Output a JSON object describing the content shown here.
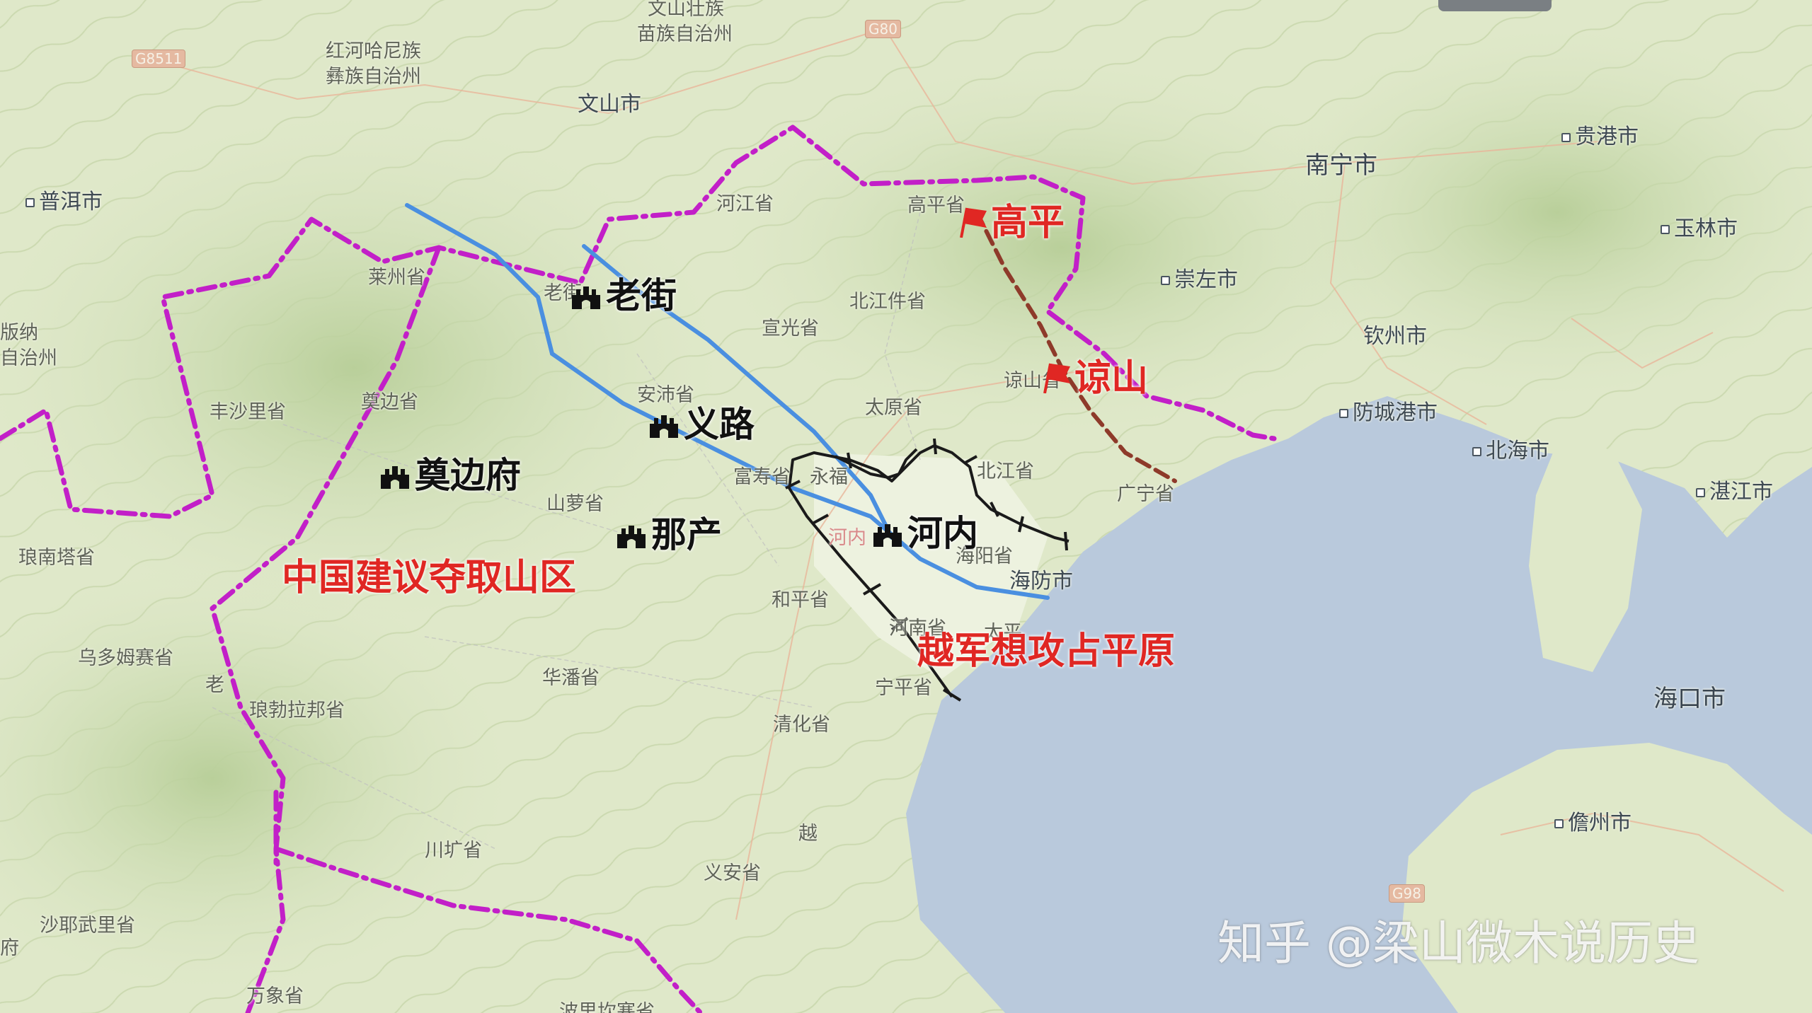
{
  "map": {
    "base_labels": [
      {
        "id": "wenshan-zhou-line1",
        "text": "文山壮族"
      },
      {
        "id": "wenshan-zhou-line2",
        "text": "苗族自治州"
      },
      {
        "id": "honghe-line1",
        "text": "红河哈尼族"
      },
      {
        "id": "honghe-line2",
        "text": "彝族自治州"
      },
      {
        "id": "xishuangbanna-line1",
        "text": "版纳"
      },
      {
        "id": "xishuangbanna-line2",
        "text": "自治州"
      },
      {
        "id": "hajiang",
        "text": "河江省"
      },
      {
        "id": "gaoping-sheng",
        "text": "高平省"
      },
      {
        "id": "laijiang-sheng",
        "text": "莱州省"
      },
      {
        "id": "laojie-sheng",
        "text": "老街"
      },
      {
        "id": "xuanguang",
        "text": "宣光省"
      },
      {
        "id": "beijiang-sheng",
        "text": "北江件省"
      },
      {
        "id": "anpei",
        "text": "安沛省"
      },
      {
        "id": "taiyuan",
        "text": "太原省"
      },
      {
        "id": "liangshan-sheng",
        "text": "谅山省"
      },
      {
        "id": "fengshali",
        "text": "丰沙里省"
      },
      {
        "id": "dianbian",
        "text": "奠边省"
      },
      {
        "id": "fushou",
        "text": "富寿省"
      },
      {
        "id": "yongfu",
        "text": "永福"
      },
      {
        "id": "beining",
        "text": "北江省"
      },
      {
        "id": "shanluo",
        "text": "山萝省"
      },
      {
        "id": "hanoi-small",
        "text": "河内"
      },
      {
        "id": "guangning",
        "text": "广宁省"
      },
      {
        "id": "haiyang",
        "text": "海阳省"
      },
      {
        "id": "langnanta",
        "text": "琅南塔省"
      },
      {
        "id": "heping",
        "text": "和平省"
      },
      {
        "id": "henan",
        "text": "河南省"
      },
      {
        "id": "taiping",
        "text": "太平"
      },
      {
        "id": "wuduomusai",
        "text": "乌多姆赛省"
      },
      {
        "id": "lao",
        "text": "老"
      },
      {
        "id": "huapan",
        "text": "华潘省"
      },
      {
        "id": "ningping",
        "text": "宁平省"
      },
      {
        "id": "luangprabang",
        "text": "琅勃拉邦省"
      },
      {
        "id": "qinghua",
        "text": "清化省"
      },
      {
        "id": "yue",
        "text": "越"
      },
      {
        "id": "chuankuang",
        "text": "川圹省"
      },
      {
        "id": "yian",
        "text": "义安省"
      },
      {
        "id": "shayewuli",
        "text": "沙耶武里省"
      },
      {
        "id": "fu",
        "text": "府"
      },
      {
        "id": "wanxiang",
        "text": "万象省"
      },
      {
        "id": "boliguangsai",
        "text": "波里坎塞省"
      }
    ],
    "city_labels": [
      {
        "id": "wenshan-shi",
        "text": "文山市"
      },
      {
        "id": "puer-shi",
        "text": "普洱市"
      },
      {
        "id": "nanning-shi",
        "text": "南宁市"
      },
      {
        "id": "guigang-shi",
        "text": "贵港市"
      },
      {
        "id": "yulin-shi",
        "text": "玉林市"
      },
      {
        "id": "chongzuo-shi",
        "text": "崇左市"
      },
      {
        "id": "qinzhou-shi",
        "text": "钦州市"
      },
      {
        "id": "fangchenggang-shi",
        "text": "防城港市"
      },
      {
        "id": "beihai-shi",
        "text": "北海市"
      },
      {
        "id": "zhanjiang-shi",
        "text": "湛江市"
      },
      {
        "id": "haiphong-shi",
        "text": "海防市"
      },
      {
        "id": "haikou-shi",
        "text": "海口市"
      },
      {
        "id": "danzhou-shi",
        "text": "儋州市"
      }
    ],
    "highway_shields": [
      {
        "id": "g8511",
        "text": "G8511"
      },
      {
        "id": "g80",
        "text": "G80"
      },
      {
        "id": "g98",
        "text": "G98"
      }
    ],
    "fort_labels": [
      {
        "id": "laojie",
        "text": "老街"
      },
      {
        "id": "yilu",
        "text": "义路"
      },
      {
        "id": "mobianfu",
        "text": "奠边府"
      },
      {
        "id": "nachan",
        "text": "那产"
      },
      {
        "id": "hanoi",
        "text": "河内"
      }
    ],
    "flag_labels": [
      {
        "id": "gaoping",
        "text": "高平"
      },
      {
        "id": "liangshan",
        "text": "谅山"
      }
    ],
    "annotations": [
      {
        "id": "china-proposal",
        "text": "中国建议夺取山区"
      },
      {
        "id": "vietnam-plain",
        "text": "越军想攻占平原"
      }
    ],
    "watermark": "知乎 @梁山微木说历史",
    "colors": {
      "border_line": "#c21fc8",
      "river_line": "#4a8fe0",
      "front_line": "#1a1a1a",
      "red_route": "#8e3a2a",
      "annotation_red": "#e02723",
      "sea": "#b9c9dc",
      "land": "#dfe8c9"
    },
    "icons": [
      "fortress-icon",
      "red-flag-icon",
      "city-dot-icon"
    ]
  }
}
